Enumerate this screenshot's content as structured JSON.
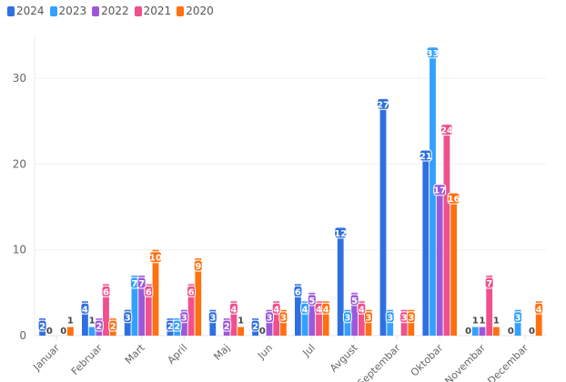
{
  "legend": [
    {
      "name": "2024",
      "color": "#2f6fe0"
    },
    {
      "name": "2023",
      "color": "#33a0ff"
    },
    {
      "name": "2022",
      "color": "#9b59d9"
    },
    {
      "name": "2021",
      "color": "#f0508c"
    },
    {
      "name": "2020",
      "color": "#ff7010"
    }
  ],
  "chart_data": {
    "type": "bar",
    "title": "",
    "xlabel": "",
    "ylabel": "",
    "ylim": [
      0,
      35
    ],
    "yticks": [
      "0",
      "10",
      "20",
      "30"
    ],
    "ytick_values": [
      0,
      10,
      20,
      30
    ],
    "grid": true,
    "legend_position": "top-left",
    "categories": [
      "Januar",
      "Februar",
      "Mart",
      "April",
      "Maj",
      "Jun",
      "Jul",
      "Avgust",
      "Septembar",
      "Oktobar",
      "Novembar",
      "Decembar"
    ],
    "series": [
      {
        "name": "2024",
        "color": "#2f6fe0",
        "values": [
          2,
          4,
          3,
          2,
          3,
          2,
          6,
          12,
          27,
          21,
          0,
          0
        ]
      },
      {
        "name": "2023",
        "color": "#33a0ff",
        "values": [
          0,
          1,
          7,
          2,
          null,
          0,
          4,
          3,
          3,
          33,
          1,
          3
        ]
      },
      {
        "name": "2022",
        "color": "#9b59d9",
        "values": [
          null,
          2,
          7,
          3,
          2,
          3,
          5,
          5,
          null,
          17,
          1,
          null
        ]
      },
      {
        "name": "2021",
        "color": "#f0508c",
        "values": [
          0,
          6,
          6,
          6,
          4,
          4,
          4,
          4,
          3,
          24,
          7,
          0
        ]
      },
      {
        "name": "2020",
        "color": "#ff7010",
        "values": [
          1,
          2,
          10,
          9,
          1,
          3,
          4,
          3,
          3,
          16,
          1,
          4
        ]
      }
    ]
  }
}
